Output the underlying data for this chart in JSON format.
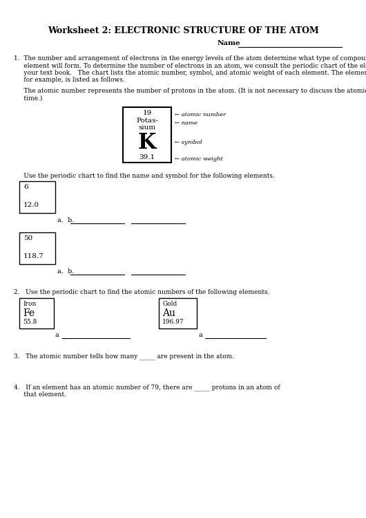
{
  "title": "Worksheet 2: ELECTRONIC STRUCTURE OF THE ATOM",
  "bg_color": "#ffffff",
  "name_label": "Name",
  "q1_para1_lines": [
    "1.  The number and arrangement of electrons in the energy levels of the atom determine what type of compounds the",
    "     element will form. To determine the number of electrons in an atom, we consult the periodic chart of the elements in",
    "     your text book.   The chart lists the atomic number, symbol, and atomic weight of each element. The element potassium,",
    "     for example, is listed as follows."
  ],
  "q1_para2_lines": [
    "     The atomic number represents the number of protons in the atom. (It is not necessary to discuss the atomic weight at this",
    "     time.)"
  ],
  "use_text": "     Use the periodic chart to find the name and symbol for the following elements.",
  "q2_text": "2.   Use the periodic chart to find the atomic numbers of the following elements.",
  "q3_text": "3.   The atomic number tells how many _____ are present in the atom.",
  "q4_lines": [
    "4.   If an element has an atomic number of 79, there are _____ protons in an atom of",
    "     that element."
  ],
  "arrow_labels": [
    "← atomic number",
    "← name",
    "← symbol",
    "← atomic weight"
  ]
}
